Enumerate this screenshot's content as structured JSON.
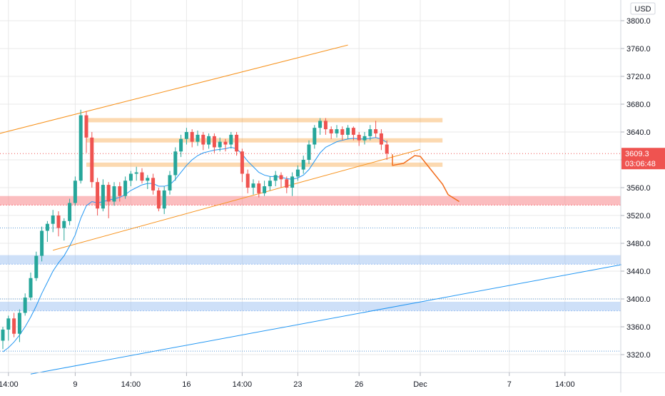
{
  "chart_data": {
    "type": "candlestick",
    "currency": "USD",
    "y_ticks": [
      3320,
      3360,
      3400,
      3440,
      3480,
      3520,
      3560,
      3600,
      3640,
      3680,
      3720,
      3760,
      3800
    ],
    "y_tick_labels": [
      "3320.0",
      "3360.0",
      "3400.0",
      "3440.0",
      "3480.0",
      "3520.0",
      "3560.0",
      "3600.0",
      "3640.0",
      "3680.0",
      "3720.0",
      "3760.0",
      "3800.0"
    ],
    "x_ticks": [
      {
        "label": "14:00",
        "bar": 1
      },
      {
        "label": "9",
        "bar": 13
      },
      {
        "label": "14:00",
        "bar": 23
      },
      {
        "label": "16",
        "bar": 33
      },
      {
        "label": "14:00",
        "bar": 43
      },
      {
        "label": "23",
        "bar": 53
      },
      {
        "label": "26",
        "bar": 64
      },
      {
        "label": "Dec",
        "bar": 75
      },
      {
        "label": "7",
        "bar": 91
      },
      {
        "label": "14:00",
        "bar": 101
      }
    ],
    "last_price_label": "3609.3",
    "countdown_label": "03:06:48",
    "candles": [
      [
        3340,
        3356,
        3328,
        3360
      ],
      [
        3356,
        3372,
        3340,
        3376
      ],
      [
        3372,
        3350,
        3345,
        3380
      ],
      [
        3350,
        3380,
        3338,
        3385
      ],
      [
        3380,
        3402,
        3376,
        3408
      ],
      [
        3402,
        3430,
        3398,
        3438
      ],
      [
        3430,
        3462,
        3426,
        3468
      ],
      [
        3462,
        3498,
        3454,
        3504
      ],
      [
        3498,
        3508,
        3482,
        3512
      ],
      [
        3508,
        3520,
        3496,
        3528
      ],
      [
        3520,
        3502,
        3490,
        3526
      ],
      [
        3502,
        3512,
        3484,
        3516
      ],
      [
        3512,
        3538,
        3506,
        3544
      ],
      [
        3538,
        3570,
        3534,
        3576
      ],
      [
        3570,
        3664,
        3566,
        3672
      ],
      [
        3664,
        3632,
        3610,
        3670
      ],
      [
        3632,
        3568,
        3560,
        3640
      ],
      [
        3568,
        3530,
        3520,
        3574
      ],
      [
        3530,
        3564,
        3526,
        3572
      ],
      [
        3564,
        3540,
        3516,
        3568
      ],
      [
        3540,
        3562,
        3534,
        3568
      ],
      [
        3562,
        3548,
        3540,
        3568
      ],
      [
        3548,
        3570,
        3544,
        3576
      ],
      [
        3570,
        3580,
        3562,
        3584
      ],
      [
        3580,
        3582,
        3570,
        3590
      ],
      [
        3582,
        3570,
        3566,
        3588
      ],
      [
        3570,
        3574,
        3558,
        3578
      ],
      [
        3574,
        3556,
        3550,
        3580
      ],
      [
        3556,
        3530,
        3526,
        3560
      ],
      [
        3530,
        3556,
        3522,
        3562
      ],
      [
        3556,
        3578,
        3550,
        3584
      ],
      [
        3578,
        3612,
        3570,
        3618
      ],
      [
        3612,
        3630,
        3604,
        3636
      ],
      [
        3630,
        3640,
        3622,
        3646
      ],
      [
        3640,
        3626,
        3618,
        3644
      ],
      [
        3626,
        3636,
        3620,
        3642
      ],
      [
        3636,
        3622,
        3614,
        3640
      ],
      [
        3622,
        3634,
        3616,
        3638
      ],
      [
        3634,
        3618,
        3610,
        3638
      ],
      [
        3618,
        3626,
        3612,
        3632
      ],
      [
        3626,
        3622,
        3612,
        3630
      ],
      [
        3622,
        3636,
        3616,
        3640
      ],
      [
        3636,
        3612,
        3606,
        3640
      ],
      [
        3612,
        3580,
        3568,
        3616
      ],
      [
        3580,
        3560,
        3552,
        3586
      ],
      [
        3560,
        3566,
        3550,
        3572
      ],
      [
        3566,
        3552,
        3546,
        3570
      ],
      [
        3552,
        3562,
        3548,
        3570
      ],
      [
        3562,
        3570,
        3556,
        3576
      ],
      [
        3570,
        3578,
        3562,
        3584
      ],
      [
        3578,
        3572,
        3560,
        3582
      ],
      [
        3572,
        3560,
        3552,
        3576
      ],
      [
        3560,
        3576,
        3548,
        3582
      ],
      [
        3576,
        3586,
        3570,
        3592
      ],
      [
        3586,
        3600,
        3580,
        3606
      ],
      [
        3600,
        3622,
        3594,
        3628
      ],
      [
        3622,
        3646,
        3616,
        3650
      ],
      [
        3646,
        3656,
        3636,
        3660
      ],
      [
        3656,
        3644,
        3636,
        3660
      ],
      [
        3644,
        3638,
        3630,
        3648
      ],
      [
        3638,
        3644,
        3632,
        3650
      ],
      [
        3644,
        3636,
        3628,
        3648
      ],
      [
        3636,
        3646,
        3630,
        3650
      ],
      [
        3646,
        3636,
        3628,
        3648
      ],
      [
        3636,
        3628,
        3620,
        3640
      ],
      [
        3628,
        3634,
        3622,
        3640
      ],
      [
        3634,
        3644,
        3628,
        3650
      ],
      [
        3644,
        3638,
        3632,
        3656
      ],
      [
        3638,
        3622,
        3614,
        3644
      ],
      [
        3622,
        3609,
        3600,
        3628
      ]
    ],
    "ema": [
      3324,
      3330,
      3338,
      3348,
      3360,
      3374,
      3390,
      3408,
      3424,
      3440,
      3452,
      3462,
      3476,
      3492,
      3516,
      3534,
      3540,
      3538,
      3540,
      3542,
      3544,
      3546,
      3550,
      3556,
      3560,
      3564,
      3566,
      3566,
      3562,
      3562,
      3564,
      3572,
      3582,
      3592,
      3600,
      3606,
      3610,
      3612,
      3614,
      3615,
      3616,
      3618,
      3616,
      3608,
      3598,
      3590,
      3582,
      3578,
      3576,
      3576,
      3575,
      3573,
      3572,
      3574,
      3578,
      3586,
      3598,
      3610,
      3618,
      3622,
      3626,
      3628,
      3630,
      3631,
      3630,
      3630,
      3631,
      3632,
      3630,
      3625
    ],
    "zones": [
      {
        "kind": "resistance",
        "from": 3535,
        "to": 3548,
        "color": "#f77c80"
      },
      {
        "kind": "support",
        "from": 3450,
        "to": 3463,
        "color": "#9ec1f2"
      },
      {
        "kind": "support",
        "from": 3383,
        "to": 3396,
        "color": "#9ec1f2"
      }
    ],
    "levels_orange": [
      3657,
      3628,
      3593
    ],
    "dotted_levels": [
      3502,
      3400,
      3325
    ],
    "trendlines": [
      {
        "color": "#f7931e",
        "from": [
          -2,
          3635
        ],
        "to": [
          62,
          3765
        ]
      },
      {
        "color": "#f7931e",
        "from": [
          9,
          3470
        ],
        "to": [
          75,
          3615
        ]
      },
      {
        "color": "#2196f3",
        "from": [
          5,
          3292
        ],
        "to": [
          113,
          3452
        ]
      }
    ],
    "projection": [
      [
        70,
        3608
      ],
      [
        70,
        3592
      ],
      [
        72,
        3595
      ],
      [
        74,
        3606
      ],
      [
        75,
        3605
      ],
      [
        77,
        3585
      ],
      [
        79,
        3565
      ],
      [
        80,
        3550
      ],
      [
        82,
        3540
      ]
    ],
    "colors": {
      "up": "#26a69a",
      "down": "#ef5350",
      "ema": "#2196f3",
      "orange": "#f7931e",
      "projection": "#f26c1b",
      "priceTag": "#ef5350",
      "grid": "#e8e8e8",
      "axisText": "#131722",
      "dotted": "#5b9bd5"
    }
  }
}
